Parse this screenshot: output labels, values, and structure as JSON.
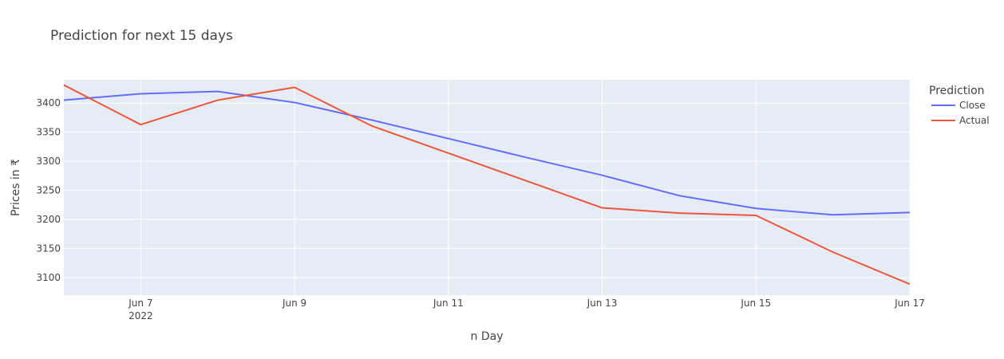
{
  "chart_data": {
    "type": "line",
    "title": "Prediction for next 15 days",
    "xlabel": "n Day",
    "ylabel": "Prices in ₹",
    "legend_title": "Prediction",
    "legend_position": "right",
    "grid": true,
    "x": [
      "2022-06-06",
      "2022-06-07",
      "2022-06-08",
      "2022-06-09",
      "2022-06-10",
      "2022-06-11",
      "2022-06-12",
      "2022-06-13",
      "2022-06-14",
      "2022-06-15",
      "2022-06-16",
      "2022-06-17"
    ],
    "xlim": [
      "2022-06-06",
      "2022-06-17"
    ],
    "ylim": [
      3070,
      3440
    ],
    "x_ticks": [
      {
        "value": "2022-06-07",
        "label": "Jun 7",
        "sub": "2022"
      },
      {
        "value": "2022-06-09",
        "label": "Jun 9",
        "sub": ""
      },
      {
        "value": "2022-06-11",
        "label": "Jun 11",
        "sub": ""
      },
      {
        "value": "2022-06-13",
        "label": "Jun 13",
        "sub": ""
      },
      {
        "value": "2022-06-15",
        "label": "Jun 15",
        "sub": ""
      },
      {
        "value": "2022-06-17",
        "label": "Jun 17",
        "sub": ""
      }
    ],
    "y_ticks": [
      3100,
      3150,
      3200,
      3250,
      3300,
      3350,
      3400
    ],
    "series": [
      {
        "name": "Close",
        "color": "#636efa",
        "values": [
          3405,
          3416,
          3420,
          3401,
          3371,
          3339,
          3307,
          3276,
          3241,
          3219,
          3208,
          3212
        ]
      },
      {
        "name": "Actual",
        "color": "#ef553b",
        "values": [
          3431,
          3363,
          3405,
          3427,
          3361,
          3314,
          3267,
          3220,
          3211,
          3207,
          3144,
          3089
        ]
      }
    ]
  }
}
